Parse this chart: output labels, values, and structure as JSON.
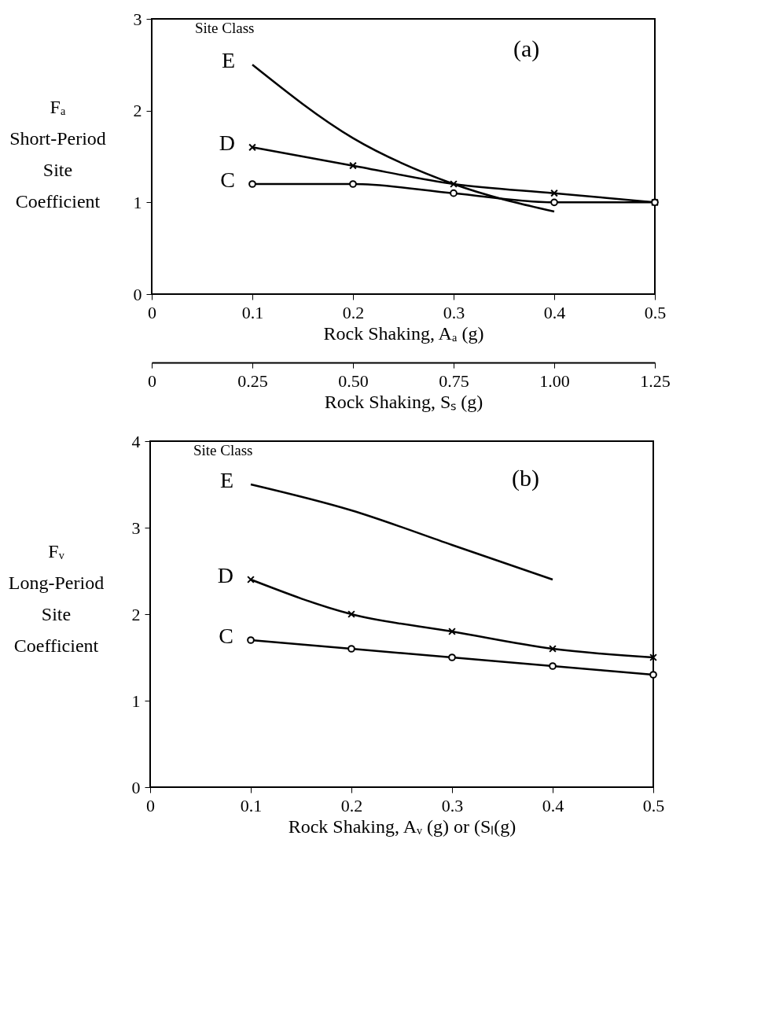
{
  "chart_data": [
    {
      "type": "line",
      "ylabel": "Fₐ\nShort-Period\nSite\nCoefficient",
      "xlabel": "Rock Shaking, Aₐ (g)",
      "x2label": "Rock Shaking, Sₛ (g)",
      "x": [
        0.1,
        0.2,
        0.3,
        0.4,
        0.5
      ],
      "xlim": [
        0,
        0.5
      ],
      "xticks": [
        0,
        0.1,
        0.2,
        0.3,
        0.4,
        0.5
      ],
      "ylim": [
        0,
        3
      ],
      "yticks": [
        0,
        1,
        2,
        3
      ],
      "x2lim": [
        0,
        1.25
      ],
      "x2ticks": [
        0,
        0.25,
        {
          "value": 0.5,
          "label": "0.50"
        },
        0.75,
        {
          "value": 1,
          "label": "1.00"
        },
        1.25
      ],
      "grid": false,
      "annotations": [
        "Site Class",
        "(a)"
      ],
      "series": [
        {
          "name": "E",
          "color": "#000000",
          "marker": "none",
          "values": [
            2.5,
            1.7,
            1.2,
            0.9,
            null
          ]
        },
        {
          "name": "D",
          "color": "#000000",
          "marker": "cross",
          "values": [
            1.6,
            1.4,
            1.2,
            1.1,
            1.0
          ]
        },
        {
          "name": "C",
          "color": "#000000",
          "marker": "circle",
          "values": [
            1.2,
            1.2,
            1.1,
            1.0,
            1.0
          ]
        }
      ]
    },
    {
      "type": "line",
      "ylabel": "Fᵥ\nLong-Period\nSite\nCoefficient",
      "xlabel": "Rock Shaking, Aᵥ (g) or (Sₗ(g)",
      "x": [
        0.1,
        0.2,
        0.3,
        0.4,
        0.5
      ],
      "xlim": [
        0,
        0.5
      ],
      "xticks": [
        0,
        0.1,
        0.2,
        0.3,
        0.4,
        0.5
      ],
      "ylim": [
        0,
        4
      ],
      "yticks": [
        0,
        1,
        2,
        3,
        4
      ],
      "grid": false,
      "annotations": [
        "Site Class",
        "(b)"
      ],
      "series": [
        {
          "name": "E",
          "color": "#000000",
          "marker": "none",
          "values": [
            3.5,
            3.2,
            2.8,
            2.4,
            null
          ]
        },
        {
          "name": "D",
          "color": "#000000",
          "marker": "cross",
          "values": [
            2.4,
            2.0,
            1.8,
            1.6,
            1.5
          ]
        },
        {
          "name": "C",
          "color": "#000000",
          "marker": "circle",
          "values": [
            1.7,
            1.6,
            1.5,
            1.4,
            1.3
          ]
        }
      ]
    }
  ]
}
